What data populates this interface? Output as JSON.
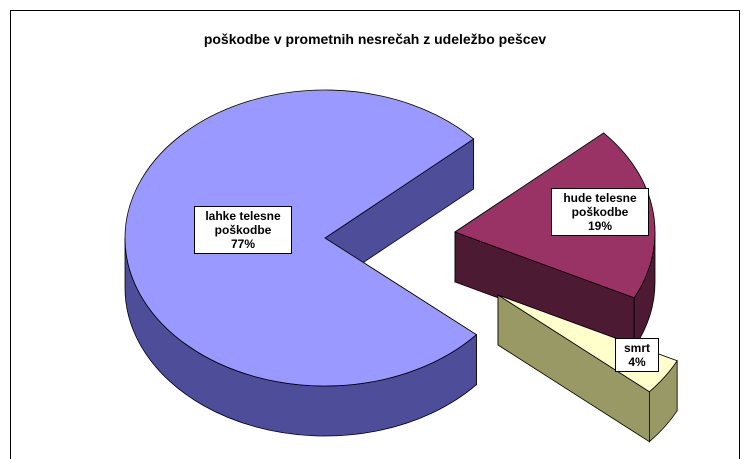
{
  "chart_data": {
    "type": "pie",
    "title": "poškodbe v prometnih nesrečah z udeležbo pešcev",
    "categories": [
      "lahke telesne poškodbe",
      "hude telesne poškodbe",
      "smrt"
    ],
    "values": [
      77,
      19,
      4
    ],
    "value_labels": [
      "77%",
      "19%",
      "4%"
    ],
    "colors": [
      "#9999ff",
      "#993366",
      "#ffffcc"
    ],
    "side_colors": [
      "#4d4d99",
      "#4d1a33",
      "#999966"
    ]
  }
}
